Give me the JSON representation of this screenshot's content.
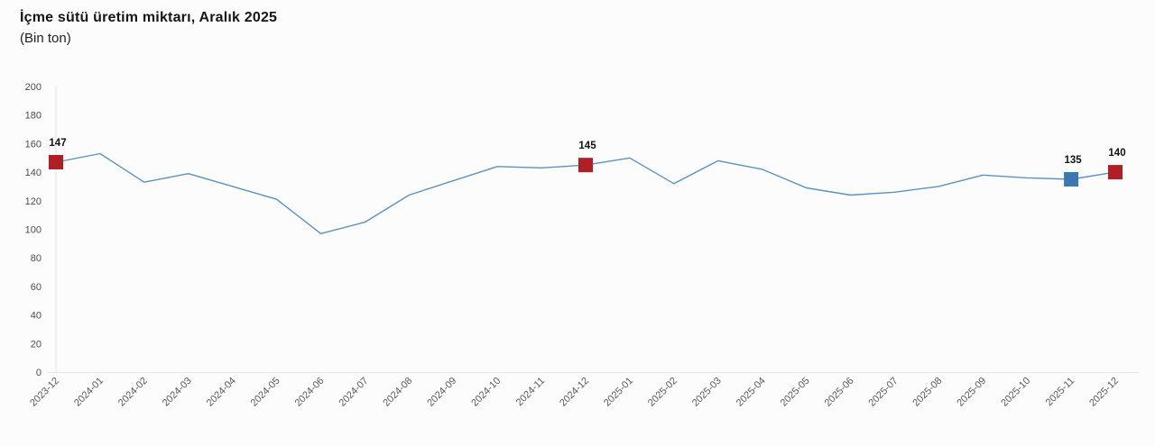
{
  "header": {
    "title": "İçme sütü üretim miktarı, Aralık 2025",
    "subtitle": "(Bin ton)"
  },
  "chart_data": {
    "type": "line",
    "title": "İçme sütü üretim miktarı, Aralık 2025",
    "subtitle": "(Bin ton)",
    "xlabel": "",
    "ylabel": "",
    "ylim": [
      0,
      200
    ],
    "ytick_step": 20,
    "grid": false,
    "legend": "none",
    "categories": [
      "2023-12",
      "2024-01",
      "2024-02",
      "2024-03",
      "2024-04",
      "2024-05",
      "2024-06",
      "2024-07",
      "2024-08",
      "2024-09",
      "2024-10",
      "2024-11",
      "2024-12",
      "2025-01",
      "2025-02",
      "2025-03",
      "2025-04",
      "2025-05",
      "2025-06",
      "2025-07",
      "2025-08",
      "2025-09",
      "2025-10",
      "2025-11",
      "2025-12"
    ],
    "values": [
      147,
      153,
      133,
      139,
      130,
      121,
      97,
      105,
      124,
      134,
      144,
      143,
      145,
      150,
      132,
      148,
      142,
      129,
      124,
      126,
      130,
      138,
      136,
      135,
      140
    ],
    "annotated_points": [
      {
        "index": 0,
        "label": "147",
        "marker_color": "#b01f24"
      },
      {
        "index": 12,
        "label": "145",
        "marker_color": "#b01f24"
      },
      {
        "index": 23,
        "label": "135",
        "marker_color": "#3978b3"
      },
      {
        "index": 24,
        "label": "140",
        "marker_color": "#b01f24"
      }
    ],
    "line_color": "#5b93be",
    "axis_color": "#e4e4e4",
    "tick_label_color": "#595959",
    "annotation_label_color": "#111111"
  }
}
